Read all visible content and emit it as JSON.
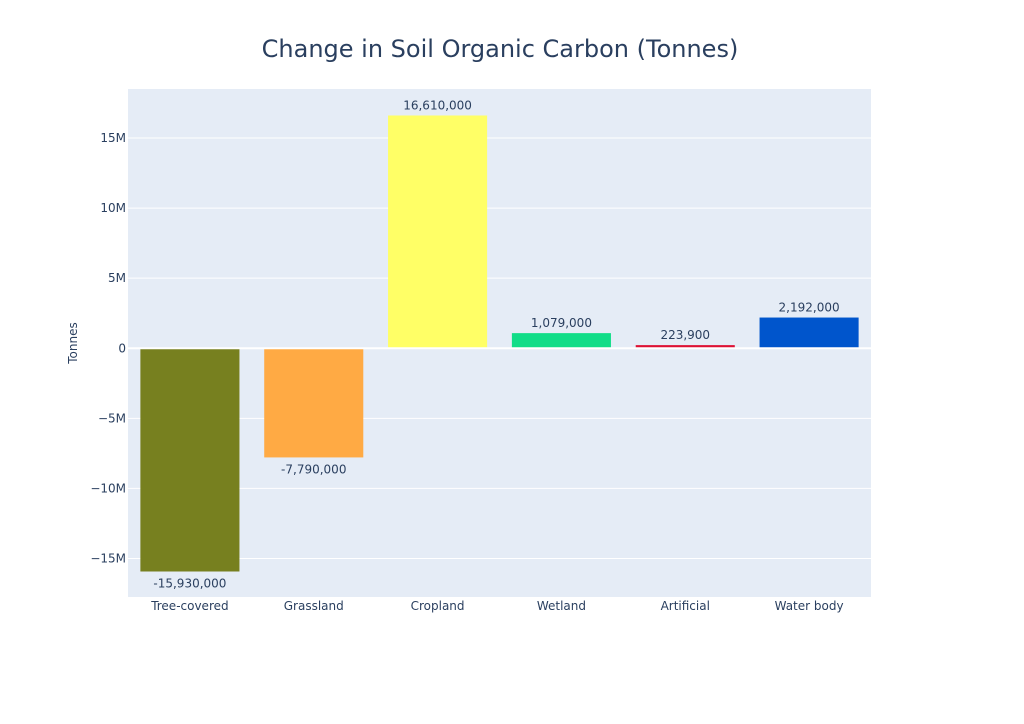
{
  "chart_data": {
    "type": "bar",
    "title": "Change in Soil Organic Carbon (Tonnes)",
    "xlabel": "",
    "ylabel": "Tonnes",
    "categories": [
      "Tree-covered",
      "Grassland",
      "Cropland",
      "Wetland",
      "Artificial",
      "Water body"
    ],
    "values": [
      -15930000,
      -7790000,
      16610000,
      1079000,
      223900,
      2192000
    ],
    "value_labels": [
      "-15,930,000",
      "-7,790,000",
      "16,610,000",
      "1,079,000",
      "223,900",
      "2,192,000"
    ],
    "bar_colors": [
      "#77801f",
      "#ffaa44",
      "#ffff66",
      "#11dd88",
      "#dd1133",
      "#0055cc"
    ],
    "ylim": [
      -17750000,
      18500000
    ],
    "y_ticks": [
      -15000000,
      -10000000,
      -5000000,
      0,
      5000000,
      10000000,
      15000000
    ],
    "y_tick_labels": [
      "−15M",
      "−10M",
      "−5M",
      "0",
      "5M",
      "10M",
      "15M"
    ],
    "grid": true,
    "plot_background": "#e5ecf6",
    "text_color": "#2a3f5f"
  }
}
